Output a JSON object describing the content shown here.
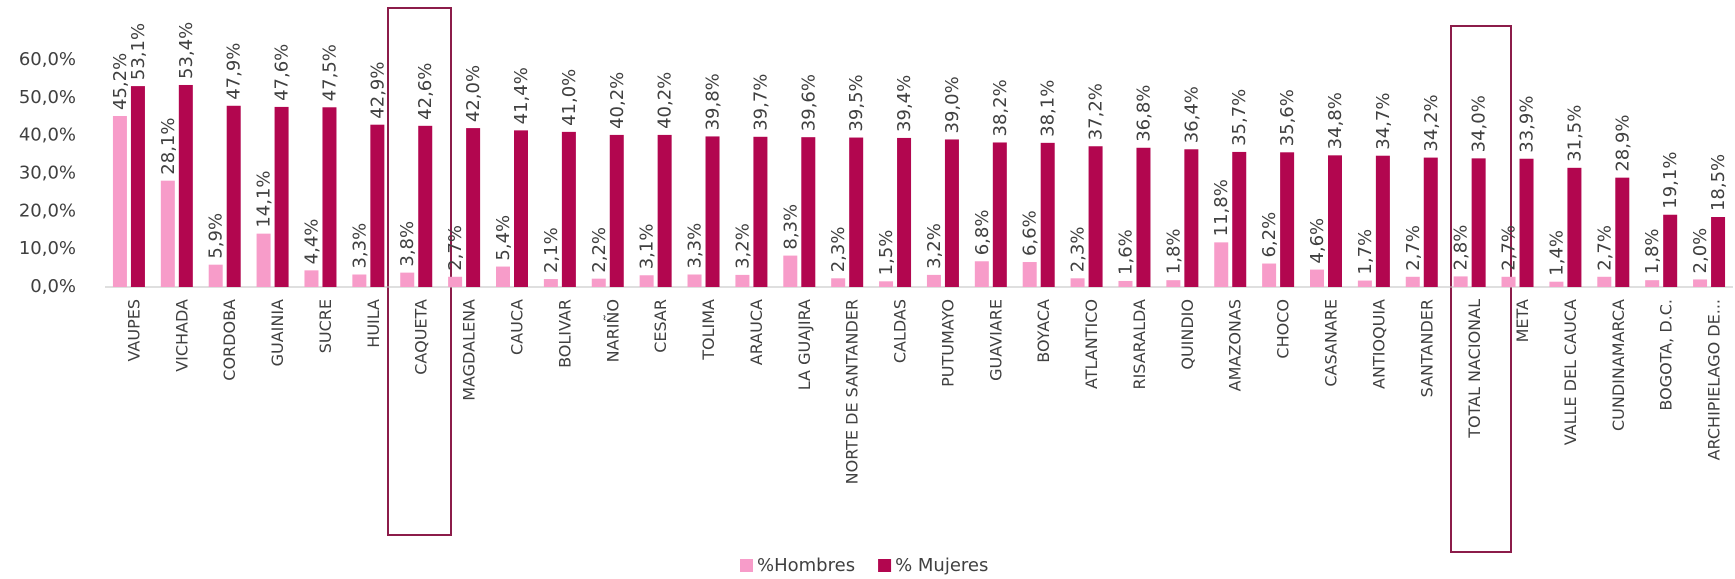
{
  "chart_data": {
    "type": "bar",
    "categories": [
      "VAUPES",
      "VICHADA",
      "CORDOBA",
      "GUAINIA",
      "SUCRE",
      "HUILA",
      "CAQUETA",
      "MAGDALENA",
      "CAUCA",
      "BOLIVAR",
      "NARIÑO",
      "CESAR",
      "TOLIMA",
      "ARAUCA",
      "LA GUAJIRA",
      "NORTE DE SANTANDER",
      "CALDAS",
      "PUTUMAYO",
      "GUAVIARE",
      "BOYACA",
      "ATLANTICO",
      "RISARALDA",
      "QUINDIO",
      "AMAZONAS",
      "CHOCO",
      "CASANARE",
      "ANTIOQUIA",
      "SANTANDER",
      "TOTAL NACIONAL",
      "META",
      "VALLE DEL CAUCA",
      "CUNDINAMARCA",
      "BOGOTA, D.C.",
      "ARCHIPIELAGO DE..."
    ],
    "series": [
      {
        "name": "%Hombres",
        "color": "#f79cc9",
        "values": [
          45.2,
          28.1,
          5.9,
          14.1,
          4.4,
          3.3,
          3.8,
          2.7,
          5.4,
          2.1,
          2.2,
          3.1,
          3.3,
          3.2,
          8.3,
          2.3,
          1.5,
          3.2,
          6.8,
          6.6,
          2.3,
          1.6,
          1.8,
          11.8,
          6.2,
          4.6,
          1.7,
          2.7,
          2.8,
          2.7,
          1.4,
          2.7,
          1.8,
          2.0
        ],
        "value_labels": [
          "45,2%",
          "28,1%",
          "5,9%",
          "14,1%",
          "4,4%",
          "3,3%",
          "3,8%",
          "2,7%",
          "5,4%",
          "2,1%",
          "2,2%",
          "3,1%",
          "3,3%",
          "3,2%",
          "8,3%",
          "2,3%",
          "1,5%",
          "3,2%",
          "6,8%",
          "6,6%",
          "2,3%",
          "1,6%",
          "1,8%",
          "11,8%",
          "6,2%",
          "4,6%",
          "1,7%",
          "2,7%",
          "2,8%",
          "2,7%",
          "1,4%",
          "2,7%",
          "1,8%",
          "2,0%"
        ]
      },
      {
        "name": "% Mujeres",
        "color": "#b2064f",
        "values": [
          53.1,
          53.4,
          47.9,
          47.6,
          47.5,
          42.9,
          42.6,
          42.0,
          41.4,
          41.0,
          40.2,
          40.2,
          39.8,
          39.7,
          39.6,
          39.5,
          39.4,
          39.0,
          38.2,
          38.1,
          37.2,
          36.8,
          36.4,
          35.7,
          35.6,
          34.8,
          34.7,
          34.2,
          34.0,
          33.9,
          31.5,
          28.9,
          19.1,
          18.5
        ],
        "value_labels": [
          "53,1%",
          "53,4%",
          "47,9%",
          "47,6%",
          "47,5%",
          "42,9%",
          "42,6%",
          "42,0%",
          "41,4%",
          "41,0%",
          "40,2%",
          "40,2%",
          "39,8%",
          "39,7%",
          "39,6%",
          "39,5%",
          "39,4%",
          "39,0%",
          "38,2%",
          "38,1%",
          "37,2%",
          "36,8%",
          "36,4%",
          "35,7%",
          "35,6%",
          "34,8%",
          "34,7%",
          "34,2%",
          "34,0%",
          "33,9%",
          "31,5%",
          "28,9%",
          "19,1%",
          "18,5%"
        ]
      }
    ],
    "ylim": [
      0,
      60
    ],
    "yticks": [
      {
        "value": 0,
        "label": "0,0%"
      },
      {
        "value": 10,
        "label": "10,0%"
      },
      {
        "value": 20,
        "label": "20,0%"
      },
      {
        "value": 30,
        "label": "30,0%"
      },
      {
        "value": 40,
        "label": "40,0%"
      },
      {
        "value": 50,
        "label": "50,0%"
      },
      {
        "value": 60,
        "label": "60,0%"
      }
    ],
    "grid": false,
    "legend": "bottom"
  }
}
